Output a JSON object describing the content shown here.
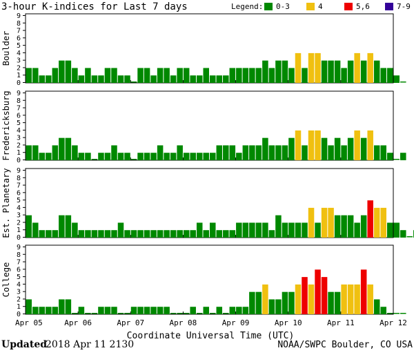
{
  "header": {
    "title": "3-hour K-indices for Last 7 days",
    "legend_label": "Legend:"
  },
  "legend": [
    {
      "label": "0-3",
      "color": "#008800"
    },
    {
      "label": "4",
      "color": "#f0c010"
    },
    {
      "label": "5,6",
      "color": "#ee0000"
    },
    {
      "label": "7-9",
      "color": "#330099"
    }
  ],
  "chart_data": {
    "type": "bar",
    "title": "3-hour K-indices for Last 7 days",
    "xlabel": "Coordinate Universal Time (UTC)",
    "ylim": [
      0,
      9
    ],
    "y_ticks": [
      "0",
      "1",
      "2",
      "3",
      "4",
      "5",
      "6",
      "7",
      "8",
      "9"
    ],
    "x_ticks": [
      "Apr 05",
      "Apr 06",
      "Apr 07",
      "Apr 08",
      "Apr 09",
      "Apr 10",
      "Apr 11",
      "Apr 12"
    ],
    "bins_per_day": 8,
    "color_scale": [
      {
        "range": "0-3",
        "color": "#008800"
      },
      {
        "range": "4",
        "color": "#f0c010"
      },
      {
        "range": "5-6",
        "color": "#ee0000"
      },
      {
        "range": "7-9",
        "color": "#330099"
      }
    ],
    "series": [
      {
        "name": "Boulder",
        "values": [
          2,
          2,
          1,
          1,
          2,
          3,
          3,
          2,
          1,
          2,
          1,
          1,
          2,
          2,
          1,
          1,
          0,
          2,
          2,
          1,
          2,
          2,
          1,
          2,
          2,
          1,
          1,
          2,
          1,
          1,
          1,
          2,
          2,
          2,
          2,
          2,
          3,
          2,
          3,
          3,
          2,
          4,
          2,
          4,
          4,
          3,
          3,
          3,
          2,
          3,
          4,
          3,
          4,
          3,
          2,
          2,
          1,
          0
        ]
      },
      {
        "name": "Fredericksburg",
        "values": [
          2,
          2,
          1,
          1,
          2,
          3,
          3,
          2,
          1,
          1,
          0,
          1,
          1,
          2,
          1,
          1,
          0,
          1,
          1,
          1,
          2,
          1,
          1,
          2,
          1,
          1,
          1,
          1,
          1,
          2,
          2,
          2,
          1,
          2,
          2,
          2,
          3,
          2,
          2,
          2,
          3,
          4,
          2,
          4,
          4,
          3,
          2,
          3,
          2,
          3,
          4,
          3,
          4,
          2,
          2,
          1,
          0,
          1
        ]
      },
      {
        "name": "Est. Planetary",
        "values": [
          3,
          2,
          1,
          1,
          1,
          3,
          3,
          2,
          1,
          1,
          1,
          1,
          1,
          1,
          2,
          1,
          1,
          1,
          1,
          1,
          1,
          1,
          1,
          1,
          1,
          1,
          2,
          1,
          2,
          1,
          1,
          1,
          2,
          2,
          2,
          2,
          2,
          1,
          3,
          2,
          2,
          2,
          2,
          4,
          2,
          4,
          4,
          3,
          3,
          3,
          2,
          3,
          5,
          4,
          4,
          2,
          2,
          1,
          0,
          1
        ]
      },
      {
        "name": "College",
        "values": [
          2,
          1,
          1,
          1,
          1,
          2,
          2,
          0,
          1,
          0,
          0,
          1,
          1,
          1,
          0,
          0,
          1,
          1,
          1,
          1,
          1,
          1,
          0,
          0,
          0,
          1,
          0,
          1,
          0,
          1,
          0,
          1,
          1,
          1,
          3,
          3,
          4,
          2,
          2,
          3,
          3,
          4,
          5,
          4,
          6,
          5,
          3,
          3,
          4,
          4,
          4,
          6,
          4,
          2,
          1,
          0,
          0,
          0
        ]
      }
    ]
  },
  "footer": {
    "updated_label": "Updated",
    "updated_value": "2018 Apr 11 2130",
    "credit": "NOAA/SWPC Boulder, CO USA"
  }
}
